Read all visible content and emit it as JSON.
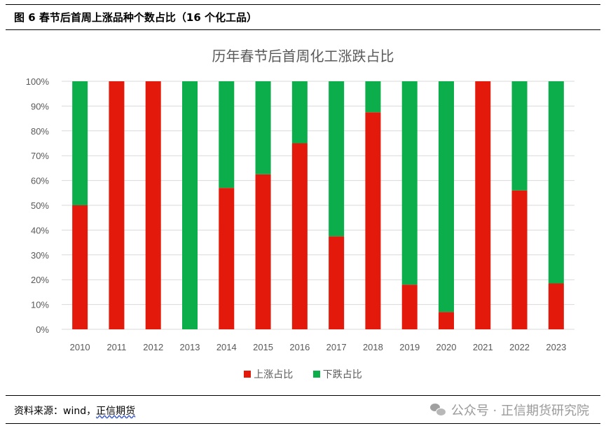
{
  "figure_title": "图 6  春节后首周上涨品种个数占比（16 个化工品）",
  "source": {
    "prefix": "资料来源：wind，",
    "link": "正信期货"
  },
  "watermark": "公众号 · 正信期货研究院",
  "colors": {
    "up": "#E31A0B",
    "down": "#0BAE4A",
    "grid": "#d9d9d9",
    "text": "#595959"
  },
  "chart_data": {
    "type": "bar",
    "stacked": true,
    "title": "历年春节后首周化工涨跌占比",
    "categories": [
      "2010",
      "2011",
      "2012",
      "2013",
      "2014",
      "2015",
      "2016",
      "2017",
      "2018",
      "2019",
      "2020",
      "2021",
      "2022",
      "2023"
    ],
    "series": [
      {
        "name": "上涨占比",
        "color": "#E31A0B",
        "values": [
          50,
          100,
          100,
          0,
          57,
          62.5,
          75,
          37.5,
          87.5,
          18,
          7,
          100,
          56,
          18.5
        ]
      },
      {
        "name": "下跌占比",
        "color": "#0BAE4A",
        "values": [
          50,
          0,
          0,
          100,
          43,
          37.5,
          25,
          62.5,
          12.5,
          82,
          93,
          0,
          44,
          81.5
        ]
      }
    ],
    "ylim": [
      0,
      100
    ],
    "yticks": [
      "0%",
      "10%",
      "20%",
      "30%",
      "40%",
      "50%",
      "60%",
      "70%",
      "80%",
      "90%",
      "100%"
    ],
    "grid": true,
    "legend_position": "bottom"
  }
}
